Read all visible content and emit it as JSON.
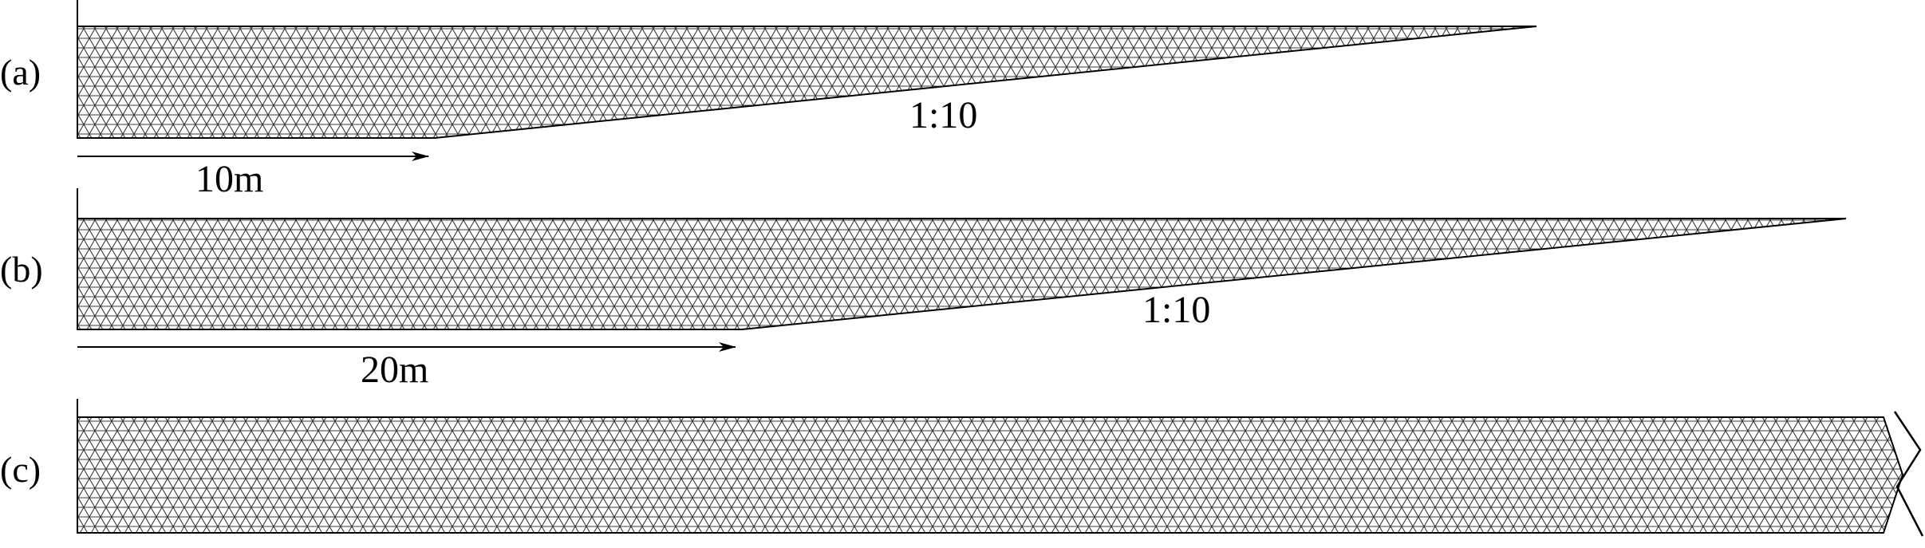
{
  "figure": {
    "panels": [
      {
        "id": "a",
        "label": "(a)",
        "flat_length": "10m",
        "slope": "1:10",
        "kind": "sloping-beach"
      },
      {
        "id": "b",
        "label": "(b)",
        "flat_length": "20m",
        "slope": "1:10",
        "kind": "sloping-beach"
      },
      {
        "id": "c",
        "label": "(c)",
        "kind": "flat-channel-truncated"
      }
    ]
  },
  "colors": {
    "mesh_line": "#3a3a3a",
    "outline": "#000000",
    "fill": "#ffffff"
  }
}
